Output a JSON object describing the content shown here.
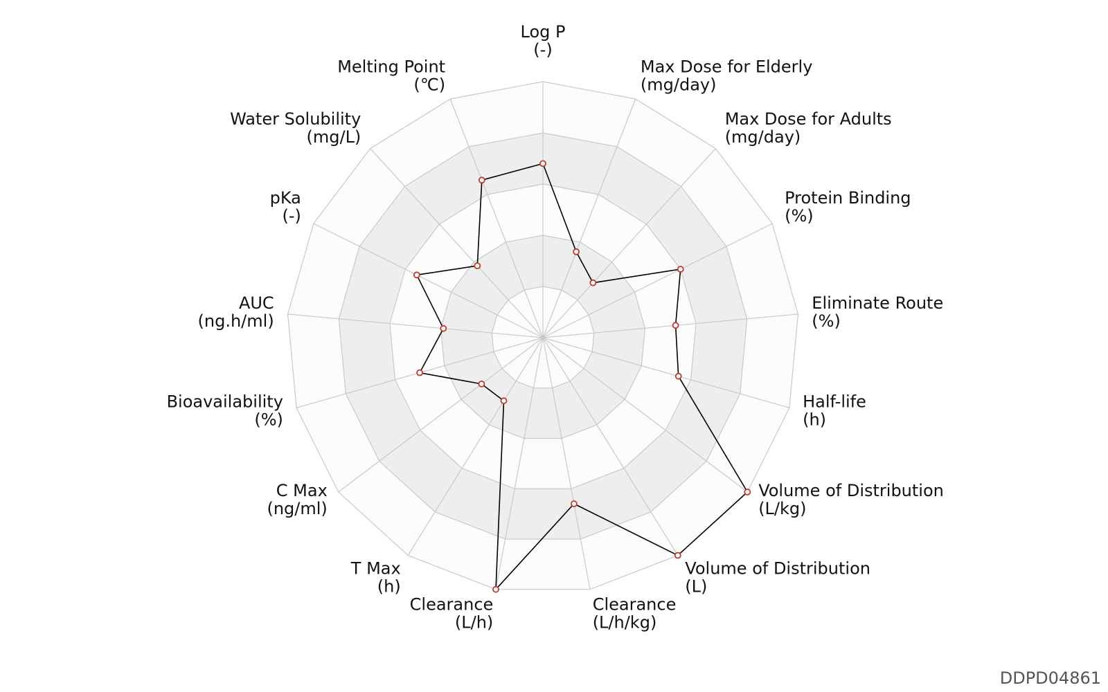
{
  "chart_data": {
    "type": "radar",
    "axes": [
      {
        "name": "Log P",
        "unit": "(-)",
        "value": 0.68
      },
      {
        "name": "Max Dose for Elderly",
        "unit": "(mg/day)",
        "value": 0.36
      },
      {
        "name": "Max Dose for Adults",
        "unit": "(mg/day)",
        "value": 0.29
      },
      {
        "name": "Protein Binding",
        "unit": "(%)",
        "value": 0.6
      },
      {
        "name": "Eliminate Route",
        "unit": "(%)",
        "value": 0.52
      },
      {
        "name": "Half-life",
        "unit": "(h)",
        "value": 0.55
      },
      {
        "name": "Volume of Distribution",
        "unit": "(L/kg)",
        "value": 1.0
      },
      {
        "name": "Volume of Distribution",
        "unit": "(L)",
        "value": 1.0
      },
      {
        "name": "Clearance",
        "unit": "(L/h/kg)",
        "value": 0.66
      },
      {
        "name": "Clearance",
        "unit": "(L/h)",
        "value": 1.0
      },
      {
        "name": "T Max",
        "unit": "(h)",
        "value": 0.29
      },
      {
        "name": "C Max",
        "unit": "(ng/ml)",
        "value": 0.3
      },
      {
        "name": "Bioavailability",
        "unit": "(%)",
        "value": 0.5
      },
      {
        "name": "AUC",
        "unit": "(ng.h/ml)",
        "value": 0.39
      },
      {
        "name": "pKa",
        "unit": "(-)",
        "value": 0.55
      },
      {
        "name": "Water Solubility",
        "unit": "(mg/L)",
        "value": 0.38
      },
      {
        "name": "Melting Point",
        "unit": "(℃)",
        "value": 0.66
      }
    ],
    "rings": 5,
    "range": [
      0,
      1
    ],
    "colors": {
      "band_light": "#fcfcfc",
      "band_dark": "#eeeeee",
      "grid": "#c9c9c9",
      "line": "#000000",
      "marker_edge": "#c0392b",
      "marker_fill": "#ffffff"
    }
  },
  "footer": {
    "id": "DDPD04861"
  }
}
